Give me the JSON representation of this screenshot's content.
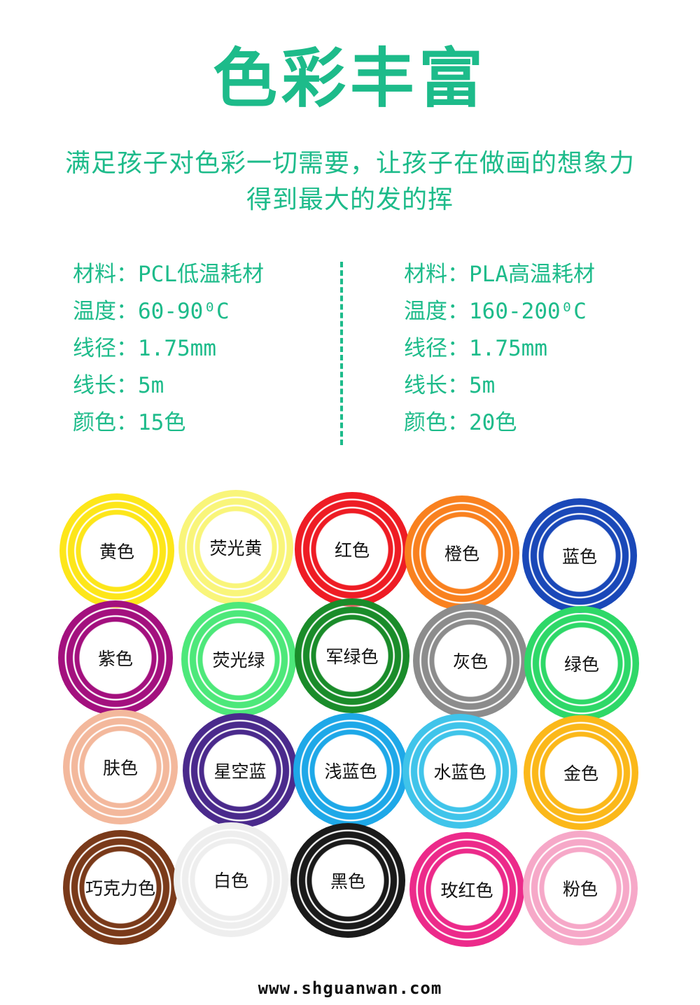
{
  "title": "色彩丰富",
  "subtitle_line1": "满足孩子对色彩一切需要，让孩子在做画的想象力",
  "subtitle_line2": "得到最大的发的挥",
  "specs": {
    "left": [
      "材料：PCL低温耗材",
      "温度：60-90⁰C",
      "线径：1.75mm",
      "线长：5m",
      "颜色：15色"
    ],
    "right": [
      "材料：PLA高温耗材",
      "温度：160-200⁰C",
      "线径：1.75mm",
      "线长：5m",
      "颜色：20色"
    ]
  },
  "colors": [
    {
      "label": "黄色",
      "color": "#fde61a"
    },
    {
      "label": "荧光黄",
      "color": "#f9f57a"
    },
    {
      "label": "红色",
      "color": "#ee1c24"
    },
    {
      "label": "橙色",
      "color": "#f9811f"
    },
    {
      "label": "蓝色",
      "color": "#1a48b8"
    },
    {
      "label": "紫色",
      "color": "#a3107e"
    },
    {
      "label": "荧光绿",
      "color": "#4de87a"
    },
    {
      "label": "军绿色",
      "color": "#1a8c2a"
    },
    {
      "label": "灰色",
      "color": "#8c8c8c"
    },
    {
      "label": "绿色",
      "color": "#2ed868"
    },
    {
      "label": "肤色",
      "color": "#f3b89c"
    },
    {
      "label": "星空蓝",
      "color": "#4a2a8c"
    },
    {
      "label": "浅蓝色",
      "color": "#1ea8e8"
    },
    {
      "label": "水蓝色",
      "color": "#40c4ea"
    },
    {
      "label": "金色",
      "color": "#fbb81a"
    },
    {
      "label": "巧克力色",
      "color": "#7a3a1a"
    },
    {
      "label": "白色",
      "color": "#eeeeee"
    },
    {
      "label": "黑色",
      "color": "#1a1a1a"
    },
    {
      "label": "玫红色",
      "color": "#ec2a8a"
    },
    {
      "label": "粉色",
      "color": "#f6a8c8"
    }
  ],
  "footer": "www.shguanwan.com"
}
